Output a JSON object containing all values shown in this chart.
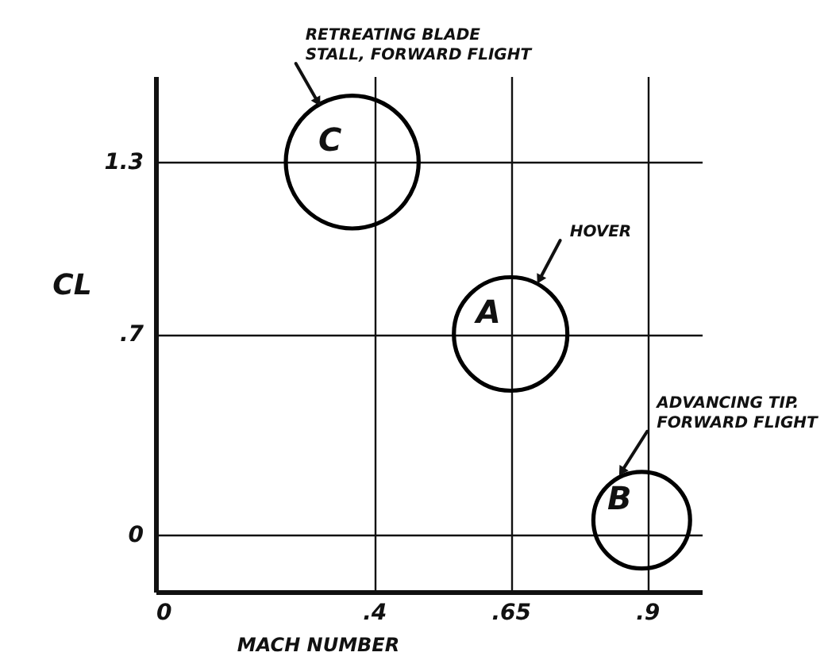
{
  "chart_data": {
    "type": "bubble",
    "xlabel": "MACH NUMBER",
    "ylabel": "CL",
    "xlim": [
      0,
      1
    ],
    "ylim": [
      -0.2,
      1.6
    ],
    "xticks": [
      0,
      {
        "value": 0.4,
        "label": ".4"
      },
      {
        "value": 0.65,
        "label": ".65"
      },
      {
        "value": 0.9,
        "label": ".9"
      }
    ],
    "yticks": [
      0,
      {
        "value": 0.7,
        "label": ".7"
      },
      1.3
    ],
    "grid": true,
    "series": [
      {
        "name": "C",
        "color": "#000000",
        "x": [
          0.36
        ],
        "values": [
          1.3
        ],
        "sizes": [
          1
        ]
      },
      {
        "name": "A",
        "color": "#000000",
        "x": [
          0.65
        ],
        "values": [
          0.7
        ],
        "sizes": [
          0.73
        ]
      },
      {
        "name": "B",
        "color": "#000000",
        "x": [
          0.89
        ],
        "values": [
          0.05
        ],
        "sizes": [
          0.53
        ]
      }
    ],
    "annotations": [
      {
        "text": "RETREATING BLADE\nSTALL, FORWARD FLIGHT",
        "x": 0.3,
        "y": 1.5
      },
      {
        "text": "HOVER",
        "x": 0.7,
        "y": 0.88
      },
      {
        "text": "ADVANCING TIP.\nFORWARD FLIGHT",
        "x": 0.85,
        "y": 0.21
      }
    ]
  }
}
